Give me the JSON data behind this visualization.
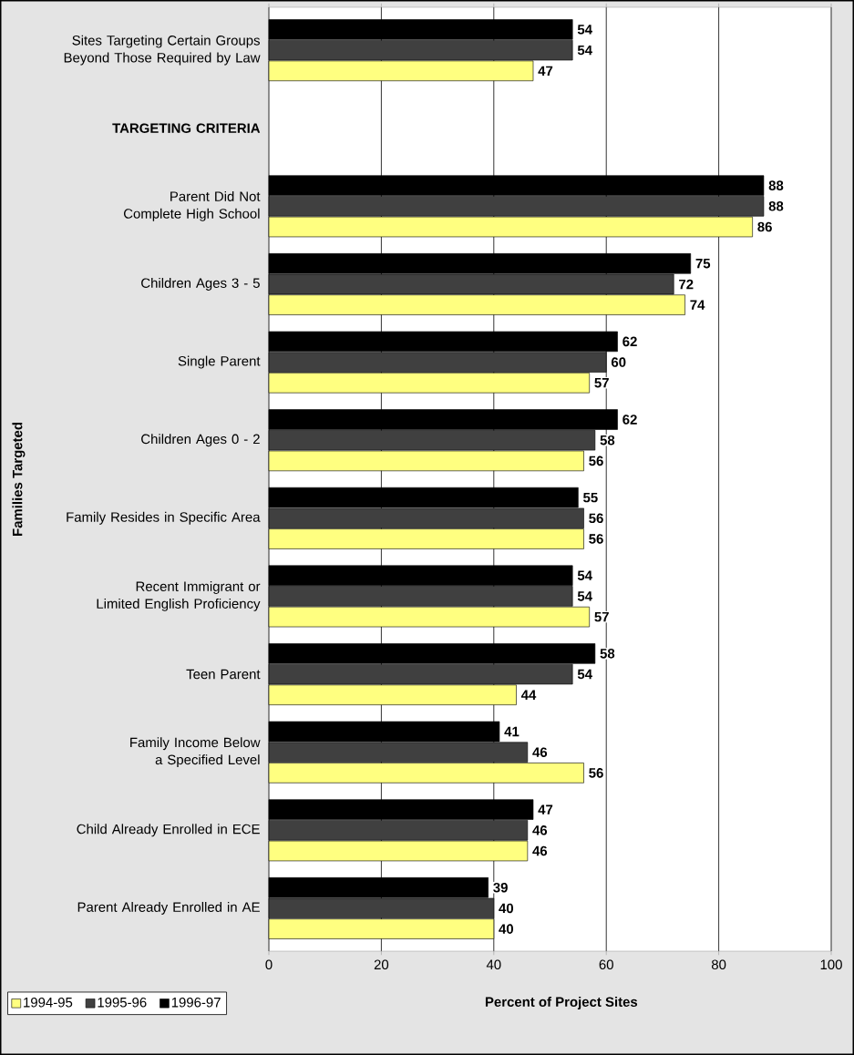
{
  "chart_data": {
    "type": "bar",
    "orientation": "horizontal",
    "categories": [
      "Sites Targeting Certain Groups Beyond Those Required by Law",
      "TARGETING CRITERIA",
      "Parent Did Not Complete High School",
      "Children Ages 3 - 5",
      "Single Parent",
      "Children Ages 0 - 2",
      "Family Resides in Specific Area",
      "Recent Immigrant or Limited English Proficiency",
      "Teen Parent",
      "Family Income Below a Specified Level",
      "Child Already Enrolled in ECE",
      "Parent Already Enrolled in AE"
    ],
    "series": [
      {
        "name": "1994-95",
        "color": "#ffff80",
        "values": [
          47,
          null,
          86,
          74,
          57,
          56,
          56,
          57,
          44,
          56,
          46,
          40
        ]
      },
      {
        "name": "1995-96",
        "color": "#404040",
        "values": [
          54,
          null,
          88,
          72,
          60,
          58,
          56,
          54,
          54,
          46,
          46,
          40
        ]
      },
      {
        "name": "1996-97",
        "color": "#000000",
        "values": [
          54,
          null,
          88,
          75,
          62,
          62,
          55,
          54,
          58,
          41,
          47,
          39
        ]
      }
    ],
    "xlim": [
      0,
      100
    ],
    "xticks": [
      0,
      20,
      40,
      60,
      80,
      100
    ],
    "xlabel": "Percent of Project Sites",
    "ylabel": "Families Targeted",
    "grid": "x",
    "legend": "bottom left",
    "data_labels": true
  }
}
